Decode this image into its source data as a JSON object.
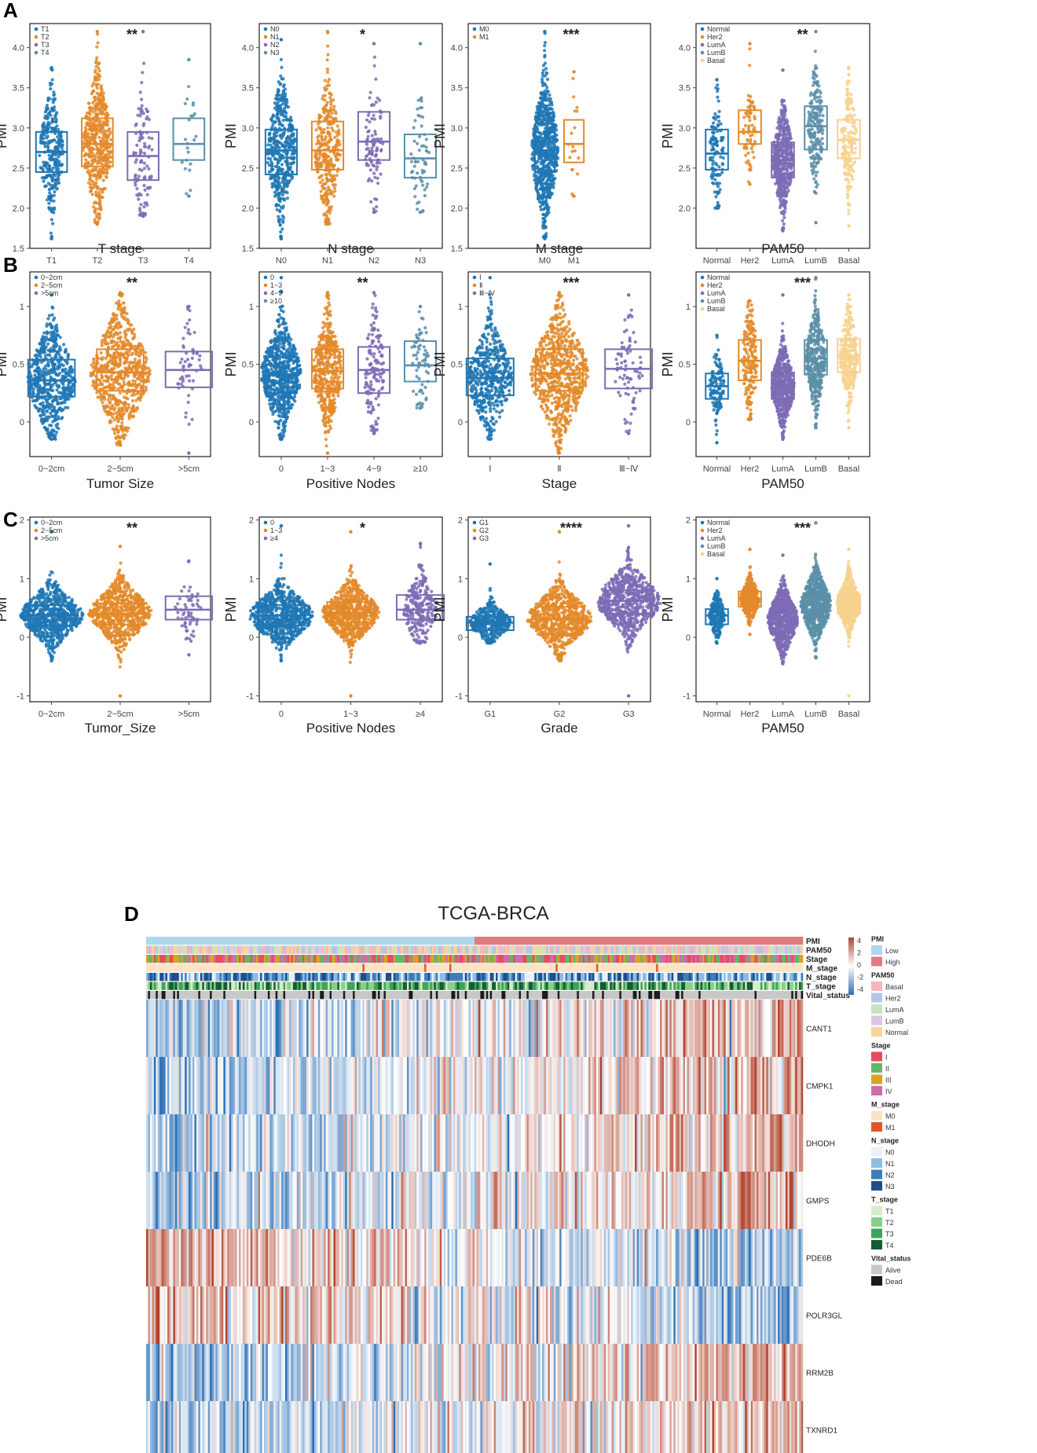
{
  "panel_letters": [
    "A",
    "B",
    "C",
    "D"
  ],
  "colors": {
    "blue": "#1f77b4",
    "orange": "#e3892a",
    "purple": "#7d6bb5",
    "teal": "#5b8fa8",
    "yellow": "#f7d28e",
    "heat_low": "#2a6fb6",
    "heat_high": "#b2442d",
    "pmi_low": "#aed8ee",
    "pmi_high": "#e07b80"
  },
  "chart_data": [
    {
      "id": "A1",
      "type": "box-swarm",
      "panel": "A",
      "xlabel": "T stage",
      "ylabel": "PMI",
      "sig": "**",
      "ylim": [
        1.5,
        4.3
      ],
      "yticks": [
        1.5,
        2.0,
        2.5,
        3.0,
        3.5,
        4.0
      ],
      "legend": [
        "T1",
        "T2",
        "T3",
        "T4"
      ],
      "groups": [
        {
          "name": "T1",
          "color": "blue",
          "n": 300,
          "q1": 2.45,
          "median": 2.7,
          "q3": 2.95,
          "min": 1.62,
          "max": 3.75
        },
        {
          "name": "T2",
          "color": "orange",
          "n": 500,
          "q1": 2.52,
          "median": 2.8,
          "q3": 3.12,
          "min": 1.8,
          "max": 4.2
        },
        {
          "name": "T3",
          "color": "purple",
          "n": 110,
          "q1": 2.35,
          "median": 2.65,
          "q3": 2.95,
          "min": 1.9,
          "max": 4.2
        },
        {
          "name": "T4",
          "color": "teal",
          "n": 22,
          "q1": 2.6,
          "median": 2.8,
          "q3": 3.12,
          "min": 2.15,
          "max": 3.85
        }
      ]
    },
    {
      "id": "A2",
      "type": "box-swarm",
      "panel": "A",
      "xlabel": "N stage",
      "ylabel": "PMI",
      "sig": "*",
      "ylim": [
        1.5,
        4.3
      ],
      "yticks": [
        1.5,
        2.0,
        2.5,
        3.0,
        3.5,
        4.0
      ],
      "legend": [
        "N0",
        "N1",
        "N2",
        "N3"
      ],
      "groups": [
        {
          "name": "N0",
          "color": "blue",
          "n": 450,
          "q1": 2.42,
          "median": 2.72,
          "q3": 2.98,
          "min": 1.62,
          "max": 4.1
        },
        {
          "name": "N1",
          "color": "orange",
          "n": 330,
          "q1": 2.48,
          "median": 2.72,
          "q3": 3.08,
          "min": 1.8,
          "max": 4.2
        },
        {
          "name": "N2",
          "color": "purple",
          "n": 95,
          "q1": 2.6,
          "median": 2.83,
          "q3": 3.2,
          "min": 1.95,
          "max": 4.05
        },
        {
          "name": "N3",
          "color": "teal",
          "n": 60,
          "q1": 2.38,
          "median": 2.62,
          "q3": 2.92,
          "min": 1.95,
          "max": 4.05
        }
      ]
    },
    {
      "id": "A3",
      "type": "box-swarm",
      "panel": "A",
      "xlabel": "M stage",
      "ylabel": "PMI",
      "sig": "***",
      "ylim": [
        1.5,
        4.3
      ],
      "yticks": [
        1.5,
        2.0,
        2.5,
        3.0,
        3.5,
        4.0
      ],
      "legend": [
        "M0",
        "M1"
      ],
      "groups": [
        {
          "name": "M0",
          "color": "blue",
          "n": 1100,
          "q1": 2.45,
          "median": 2.72,
          "q3": 3.05,
          "min": 1.62,
          "max": 4.2
        },
        {
          "name": "M1",
          "color": "orange",
          "n": 18,
          "q1": 2.57,
          "median": 2.8,
          "q3": 3.1,
          "min": 2.15,
          "max": 3.7
        }
      ]
    },
    {
      "id": "A4",
      "type": "box-swarm",
      "panel": "A",
      "xlabel": "PAM50",
      "ylabel": "PMI",
      "sig": "**",
      "ylim": [
        1.5,
        4.3
      ],
      "yticks": [
        2.0,
        2.5,
        3.0,
        3.5,
        4.0
      ],
      "legend": [
        "Normal",
        "Her2",
        "LumA",
        "LumB",
        "Basal"
      ],
      "groups": [
        {
          "name": "Normal",
          "color": "blue",
          "n": 120,
          "q1": 2.48,
          "median": 2.68,
          "q3": 2.98,
          "min": 2.0,
          "max": 3.6
        },
        {
          "name": "Her2",
          "color": "orange",
          "n": 70,
          "q1": 2.8,
          "median": 2.95,
          "q3": 3.22,
          "min": 2.3,
          "max": 4.05
        },
        {
          "name": "LumA",
          "color": "purple",
          "n": 500,
          "q1": 2.38,
          "median": 2.6,
          "q3": 2.82,
          "min": 1.72,
          "max": 3.72
        },
        {
          "name": "LumB",
          "color": "teal",
          "n": 200,
          "q1": 2.73,
          "median": 3.02,
          "q3": 3.27,
          "min": 1.82,
          "max": 4.2
        },
        {
          "name": "Basal",
          "color": "yellow",
          "n": 180,
          "q1": 2.62,
          "median": 2.85,
          "q3": 3.1,
          "min": 1.78,
          "max": 3.75
        }
      ]
    },
    {
      "id": "B1",
      "type": "box-swarm",
      "panel": "B",
      "xlabel": "Tumor Size",
      "ylabel": "PMI",
      "sig": "**",
      "ylim": [
        -0.3,
        1.3
      ],
      "yticks": [
        0.0,
        0.5,
        1.0
      ],
      "legend": [
        "0~2cm",
        "2~5cm",
        ">5cm"
      ],
      "groups": [
        {
          "name": "0~2cm",
          "color": "blue",
          "n": 600,
          "q1": 0.22,
          "median": 0.36,
          "q3": 0.54,
          "min": -0.15,
          "max": 1.1
        },
        {
          "name": "2~5cm",
          "color": "orange",
          "n": 900,
          "q1": 0.27,
          "median": 0.43,
          "q3": 0.63,
          "min": -0.2,
          "max": 1.12
        },
        {
          "name": ">5cm",
          "color": "purple",
          "n": 55,
          "q1": 0.3,
          "median": 0.45,
          "q3": 0.61,
          "min": -0.27,
          "max": 1.0
        }
      ]
    },
    {
      "id": "B2",
      "type": "box-swarm",
      "panel": "B",
      "xlabel": "Positive Nodes",
      "ylabel": "PMI",
      "sig": "**",
      "ylim": [
        -0.3,
        1.3
      ],
      "yticks": [
        0.0,
        0.5,
        1.0
      ],
      "legend": [
        "0",
        "1~3",
        "4~9",
        "≥10"
      ],
      "groups": [
        {
          "name": "0",
          "color": "blue",
          "n": 900,
          "q1": 0.25,
          "median": 0.41,
          "q3": 0.56,
          "min": -0.15,
          "max": 1.25
        },
        {
          "name": "1~3",
          "color": "orange",
          "n": 450,
          "q1": 0.29,
          "median": 0.44,
          "q3": 0.63,
          "min": -0.27,
          "max": 1.12
        },
        {
          "name": "4~9",
          "color": "purple",
          "n": 150,
          "q1": 0.25,
          "median": 0.45,
          "q3": 0.65,
          "min": -0.1,
          "max": 1.12
        },
        {
          "name": "≥10",
          "color": "teal",
          "n": 70,
          "q1": 0.35,
          "median": 0.49,
          "q3": 0.7,
          "min": 0.12,
          "max": 1.0
        }
      ]
    },
    {
      "id": "B3",
      "type": "box-swarm",
      "panel": "B",
      "xlabel": "Stage",
      "ylabel": "PMI",
      "sig": "***",
      "ylim": [
        -0.3,
        1.3
      ],
      "yticks": [
        0.0,
        0.5,
        1.0
      ],
      "legend": [
        "Ⅰ",
        "Ⅱ",
        "Ⅲ~Ⅳ"
      ],
      "groups": [
        {
          "name": "Ⅰ",
          "color": "blue",
          "n": 500,
          "q1": 0.23,
          "median": 0.38,
          "q3": 0.55,
          "min": -0.15,
          "max": 1.25
        },
        {
          "name": "Ⅱ",
          "color": "orange",
          "n": 850,
          "q1": 0.27,
          "median": 0.42,
          "q3": 0.63,
          "min": -0.27,
          "max": 1.12
        },
        {
          "name": "Ⅲ~Ⅳ",
          "color": "purple",
          "n": 80,
          "q1": 0.29,
          "median": 0.46,
          "q3": 0.63,
          "min": -0.1,
          "max": 1.1
        }
      ]
    },
    {
      "id": "B4",
      "type": "box-swarm",
      "panel": "B",
      "xlabel": "PAM50",
      "ylabel": "PMI",
      "sig": "***",
      "ylim": [
        -0.3,
        1.3
      ],
      "yticks": [
        0.0,
        0.5,
        1.0
      ],
      "legend": [
        "Normal",
        "Her2",
        "LumA",
        "LumB",
        "Basal"
      ],
      "groups": [
        {
          "name": "Normal",
          "color": "blue",
          "n": 120,
          "q1": 0.2,
          "median": 0.31,
          "q3": 0.42,
          "min": -0.18,
          "max": 0.75
        },
        {
          "name": "Her2",
          "color": "orange",
          "n": 180,
          "q1": 0.36,
          "median": 0.53,
          "q3": 0.71,
          "min": 0.02,
          "max": 1.05
        },
        {
          "name": "LumA",
          "color": "purple",
          "n": 600,
          "q1": 0.2,
          "median": 0.31,
          "q3": 0.43,
          "min": -0.15,
          "max": 1.1
        },
        {
          "name": "LumB",
          "color": "teal",
          "n": 400,
          "q1": 0.41,
          "median": 0.55,
          "q3": 0.71,
          "min": -0.05,
          "max": 1.25
        },
        {
          "name": "Basal",
          "color": "yellow",
          "n": 300,
          "q1": 0.43,
          "median": 0.57,
          "q3": 0.72,
          "min": -0.05,
          "max": 1.1
        }
      ]
    },
    {
      "id": "C1",
      "type": "box-swarm",
      "panel": "C",
      "xlabel": "Tumor_Size",
      "ylabel": "PMI",
      "sig": "**",
      "ylim": [
        -1.1,
        2.05
      ],
      "yticks": [
        -1,
        0,
        1,
        2
      ],
      "legend": [
        "0~2cm",
        "2~5cm",
        ">5cm"
      ],
      "groups": [
        {
          "name": "0~2cm",
          "color": "blue",
          "n": 1500,
          "q1": 0.2,
          "median": 0.38,
          "q3": 0.55,
          "min": -0.4,
          "max": 1.8
        },
        {
          "name": "2~5cm",
          "color": "orange",
          "n": 1300,
          "q1": 0.22,
          "median": 0.4,
          "q3": 0.58,
          "min": -1.0,
          "max": 1.55
        },
        {
          "name": ">5cm",
          "color": "purple",
          "n": 60,
          "q1": 0.3,
          "median": 0.47,
          "q3": 0.7,
          "min": -0.3,
          "max": 1.3
        }
      ]
    },
    {
      "id": "C2",
      "type": "box-swarm",
      "panel": "C",
      "xlabel": "Positive Nodes",
      "ylabel": "PMI",
      "sig": "*",
      "ylim": [
        -1.1,
        2.05
      ],
      "yticks": [
        -1,
        0,
        1,
        2
      ],
      "legend": [
        "0",
        "1~3",
        "≥4"
      ],
      "groups": [
        {
          "name": "0",
          "color": "blue",
          "n": 1500,
          "q1": 0.2,
          "median": 0.37,
          "q3": 0.55,
          "min": -0.4,
          "max": 1.9
        },
        {
          "name": "1~3",
          "color": "orange",
          "n": 800,
          "q1": 0.25,
          "median": 0.42,
          "q3": 0.6,
          "min": -1.0,
          "max": 1.8
        },
        {
          "name": "≥4",
          "color": "purple",
          "n": 250,
          "q1": 0.3,
          "median": 0.47,
          "q3": 0.72,
          "min": -0.1,
          "max": 1.6
        }
      ]
    },
    {
      "id": "C3",
      "type": "box-swarm",
      "panel": "C",
      "xlabel": "Grade",
      "ylabel": "PMI",
      "sig": "****",
      "ylim": [
        -1.1,
        2.05
      ],
      "yticks": [
        -1,
        0,
        1,
        2
      ],
      "legend": [
        "G1",
        "G2",
        "G3"
      ],
      "groups": [
        {
          "name": "G1",
          "color": "blue",
          "n": 400,
          "q1": 0.12,
          "median": 0.25,
          "q3": 0.35,
          "min": -0.1,
          "max": 1.25
        },
        {
          "name": "G2",
          "color": "orange",
          "n": 1300,
          "q1": 0.15,
          "median": 0.32,
          "q3": 0.52,
          "min": -0.4,
          "max": 1.8
        },
        {
          "name": "G3",
          "color": "purple",
          "n": 1500,
          "q1": 0.4,
          "median": 0.62,
          "q3": 0.8,
          "min": -1.0,
          "max": 1.9
        }
      ]
    },
    {
      "id": "C4",
      "type": "box-swarm",
      "panel": "C",
      "xlabel": "PAM50",
      "ylabel": "PMI",
      "sig": "***",
      "ylim": [
        -1.1,
        2.05
      ],
      "yticks": [
        -1,
        0,
        1,
        2
      ],
      "legend": [
        "Normal",
        "Her2",
        "LumA",
        "LumB",
        "Basal"
      ],
      "groups": [
        {
          "name": "Normal",
          "color": "blue",
          "n": 200,
          "q1": 0.22,
          "median": 0.37,
          "q3": 0.48,
          "min": -0.1,
          "max": 1.0
        },
        {
          "name": "Her2",
          "color": "orange",
          "n": 350,
          "q1": 0.52,
          "median": 0.65,
          "q3": 0.78,
          "min": 0.05,
          "max": 1.5
        },
        {
          "name": "LumA",
          "color": "purple",
          "n": 1200,
          "q1": 0.1,
          "median": 0.3,
          "q3": 0.48,
          "min": -0.45,
          "max": 1.4
        },
        {
          "name": "LumB",
          "color": "teal",
          "n": 1100,
          "q1": 0.35,
          "median": 0.55,
          "q3": 0.75,
          "min": -0.35,
          "max": 1.95
        },
        {
          "name": "Basal",
          "color": "yellow",
          "n": 600,
          "q1": 0.4,
          "median": 0.58,
          "q3": 0.72,
          "min": -1.0,
          "max": 1.5
        }
      ]
    },
    {
      "id": "D",
      "type": "heatmap",
      "panel": "D",
      "title": "TCGA-BRCA",
      "annotation_rows": [
        "PMI",
        "PAM50",
        "Stage",
        "M_stage",
        "N_stage",
        "T_stage",
        "Vital_status"
      ],
      "genes": [
        "CANT1",
        "CMPK1",
        "DHODH",
        "GMPS",
        "PDE6B",
        "POLR3GL",
        "RRM2B",
        "TXNRD1"
      ],
      "gene_trend": [
        1,
        1,
        1,
        1,
        -1,
        -1,
        1,
        1
      ],
      "scale_ticks": [
        "4",
        "2",
        "0",
        "-2",
        "-4"
      ],
      "legend_groups": [
        {
          "title": "PMI",
          "items": [
            {
              "label": "Low",
              "color": "#aed8ee"
            },
            {
              "label": "High",
              "color": "#e07b80"
            }
          ]
        },
        {
          "title": "PAM50",
          "items": [
            {
              "label": "Basal",
              "color": "#f4b6b9"
            },
            {
              "label": "Her2",
              "color": "#b3c6e3"
            },
            {
              "label": "LumA",
              "color": "#c9e3c1"
            },
            {
              "label": "LumB",
              "color": "#dcc6e3"
            },
            {
              "label": "Normal",
              "color": "#f8d49a"
            }
          ]
        },
        {
          "title": "Stage",
          "items": [
            {
              "label": "I",
              "color": "#e94b5e"
            },
            {
              "label": "II",
              "color": "#63b768"
            },
            {
              "label": "III",
              "color": "#d8a41f"
            },
            {
              "label": "IV",
              "color": "#d26aa8"
            }
          ]
        },
        {
          "title": "M_stage",
          "items": [
            {
              "label": "M0",
              "color": "#fbe3c6"
            },
            {
              "label": "M1",
              "color": "#e0562a"
            }
          ]
        },
        {
          "title": "N_stage",
          "items": [
            {
              "label": "N0",
              "color": "#e8f1fa"
            },
            {
              "label": "N1",
              "color": "#8fbde0"
            },
            {
              "label": "N2",
              "color": "#3a7fbb"
            },
            {
              "label": "N3",
              "color": "#1d4f8a"
            }
          ]
        },
        {
          "title": "T_stage",
          "items": [
            {
              "label": "T1",
              "color": "#d4ecc8"
            },
            {
              "label": "T2",
              "color": "#8ccd8a"
            },
            {
              "label": "T3",
              "color": "#3ea35b"
            },
            {
              "label": "T4",
              "color": "#165c33"
            }
          ]
        },
        {
          "title": "Vital_status",
          "items": [
            {
              "label": "Alive",
              "color": "#c8c8c8"
            },
            {
              "label": "Dead",
              "color": "#1a1a1a"
            }
          ]
        }
      ]
    }
  ]
}
